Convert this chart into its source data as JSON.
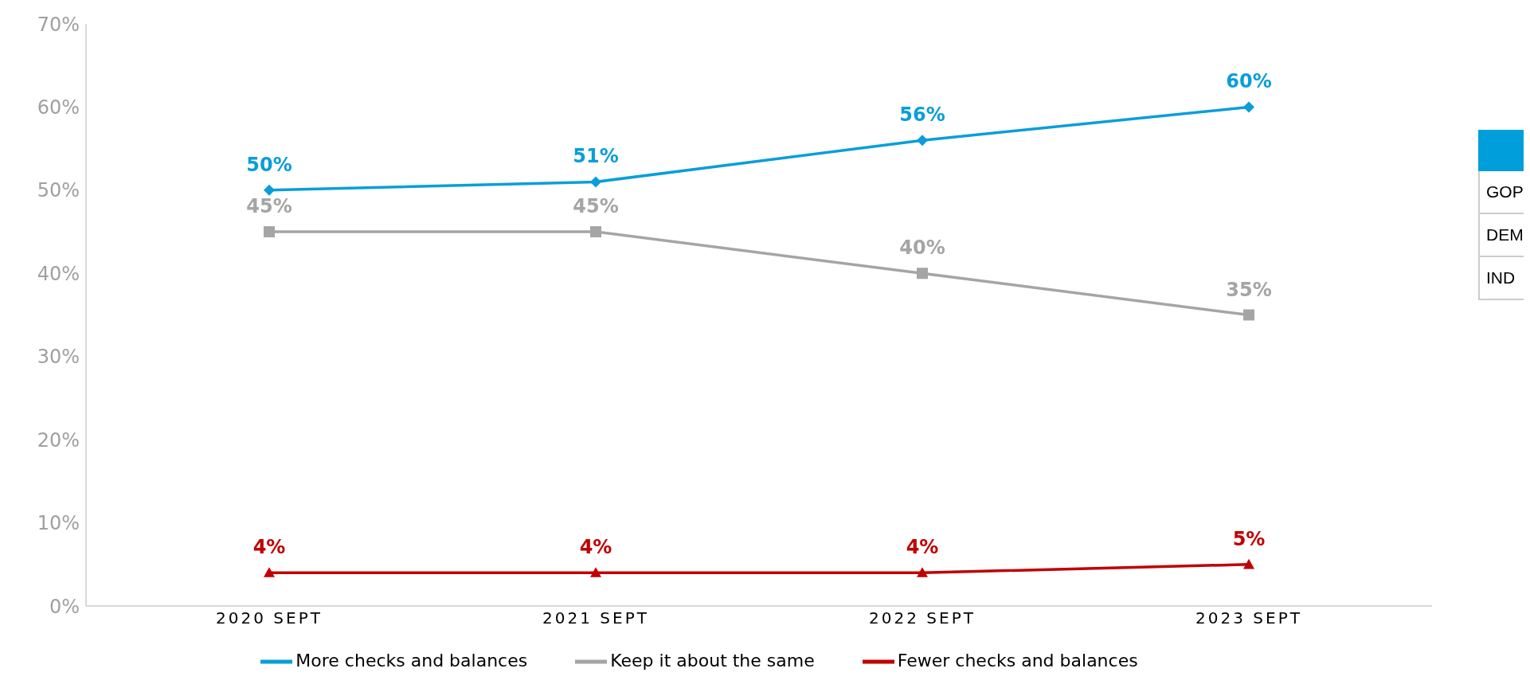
{
  "chart_data": {
    "type": "line",
    "categories": [
      "2020 SEPT",
      "2021 SEPT",
      "2022 SEPT",
      "2023 SEPT"
    ],
    "series": [
      {
        "name": "More checks and balances",
        "color": "#0a9ed9",
        "marker": "diamond",
        "values": [
          50,
          51,
          56,
          60
        ],
        "value_labels": [
          "50%",
          "51%",
          "56%",
          "60%"
        ]
      },
      {
        "name": "Keep it about the same",
        "color": "#a5a5a5",
        "marker": "square",
        "values": [
          45,
          45,
          40,
          35
        ],
        "value_labels": [
          "45%",
          "45%",
          "40%",
          "35%"
        ]
      },
      {
        "name": "Fewer checks and balances",
        "color": "#c00000",
        "marker": "triangle",
        "values": [
          4,
          4,
          4,
          5
        ],
        "value_labels": [
          "4%",
          "4%",
          "4%",
          "5%"
        ]
      }
    ],
    "ylim": [
      0,
      70
    ],
    "yticks": [
      {
        "value": 0,
        "label": "0%"
      },
      {
        "value": 10,
        "label": "10%"
      },
      {
        "value": 20,
        "label": "20%"
      },
      {
        "value": 30,
        "label": "30%"
      },
      {
        "value": 40,
        "label": "40%"
      },
      {
        "value": 50,
        "label": "50%"
      },
      {
        "value": 60,
        "label": "60%"
      },
      {
        "value": 70,
        "label": "70%"
      }
    ],
    "grid": false,
    "legend": "bottom",
    "annotations": [
      "GOP",
      "DEM",
      "IND"
    ]
  }
}
